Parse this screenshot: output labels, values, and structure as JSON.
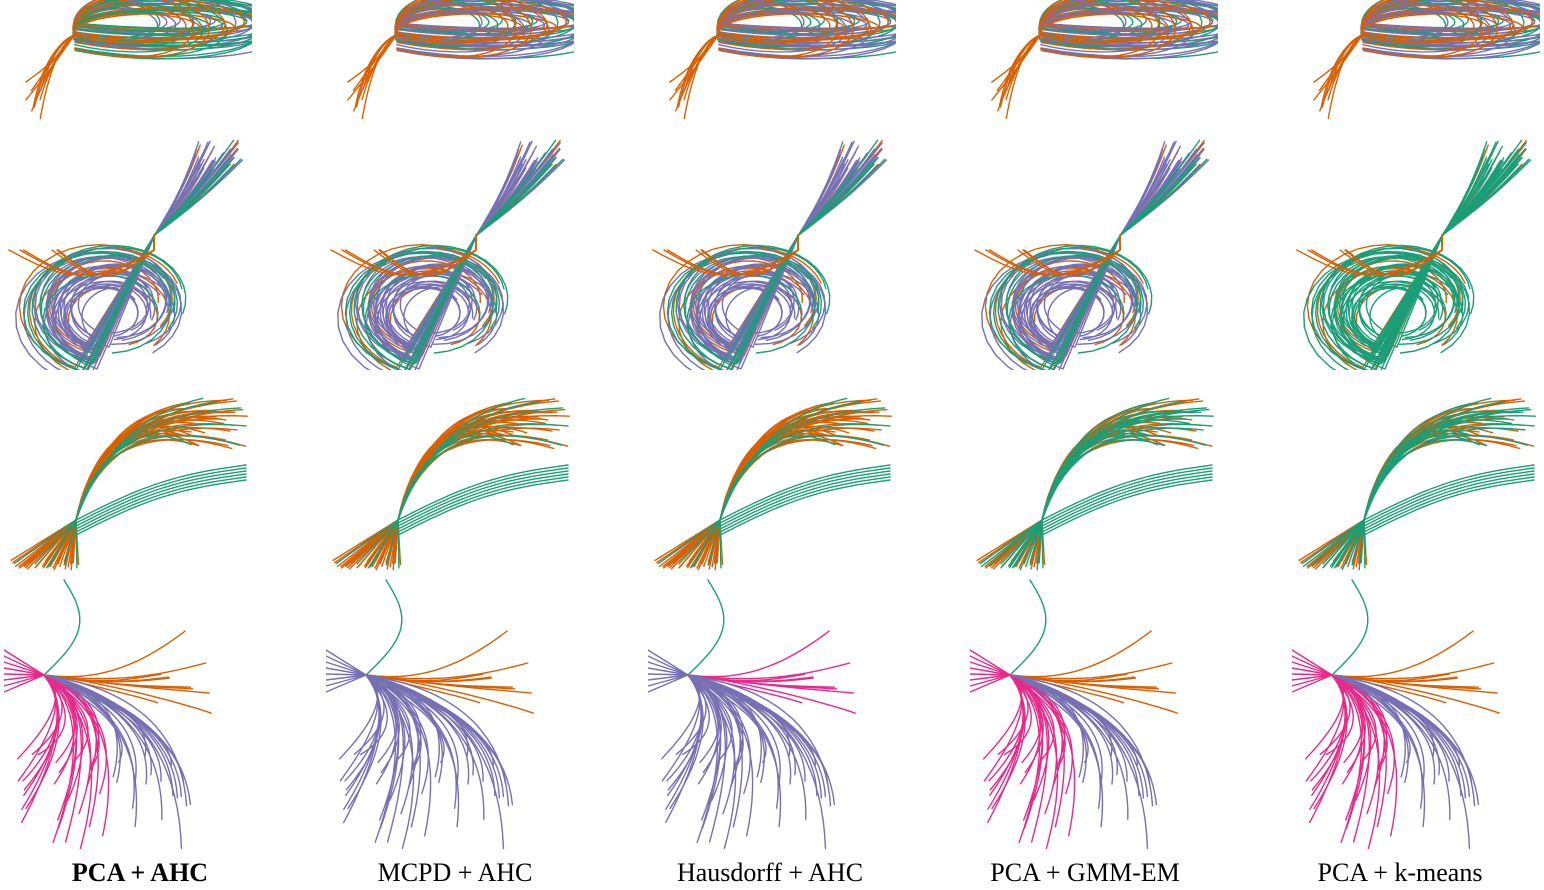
{
  "figure": {
    "columns": [
      {
        "label": "PCA + AHC",
        "bold": true
      },
      {
        "label": "MCPD + AHC",
        "bold": false
      },
      {
        "label": "Hausdorff + AHC",
        "bold": false
      },
      {
        "label": "PCA + GMM-EM",
        "bold": false
      },
      {
        "label": "PCA + k-means",
        "bold": false
      }
    ],
    "palette": {
      "orange": "#d95f02",
      "green": "#1b9e77",
      "purple": "#7570b3",
      "pink": "#e7298a"
    },
    "rows": [
      {
        "name": "row-1",
        "groups": [
          [
            "purple",
            "orange",
            "green"
          ],
          [
            "green",
            "orange",
            "purple"
          ],
          [
            "green",
            "orange",
            "purple"
          ],
          [
            "green",
            "orange",
            "purple"
          ],
          [
            "green",
            "orange",
            "purple"
          ]
        ]
      },
      {
        "name": "row-2",
        "groups": [
          [
            "orange",
            "purple",
            "green"
          ],
          [
            "orange",
            "purple",
            "green"
          ],
          [
            "orange",
            "purple",
            "green"
          ],
          [
            "orange",
            "purple",
            "green"
          ],
          [
            "orange",
            "green",
            "green"
          ]
        ]
      },
      {
        "name": "row-3",
        "groups": [
          [
            "orange",
            "orange",
            "green"
          ],
          [
            "orange",
            "orange",
            "green"
          ],
          [
            "orange",
            "orange",
            "green"
          ],
          [
            "orange",
            "green",
            "green"
          ],
          [
            "orange",
            "green",
            "green"
          ]
        ]
      },
      {
        "name": "row-4",
        "groups": [
          [
            "green",
            "orange",
            "purple",
            "pink"
          ],
          [
            "green",
            "orange",
            "purple",
            "purple"
          ],
          [
            "green",
            "pink",
            "purple",
            "purple"
          ],
          [
            "green",
            "orange",
            "purple",
            "pink"
          ],
          [
            "green",
            "orange",
            "purple",
            "pink"
          ]
        ]
      }
    ]
  }
}
